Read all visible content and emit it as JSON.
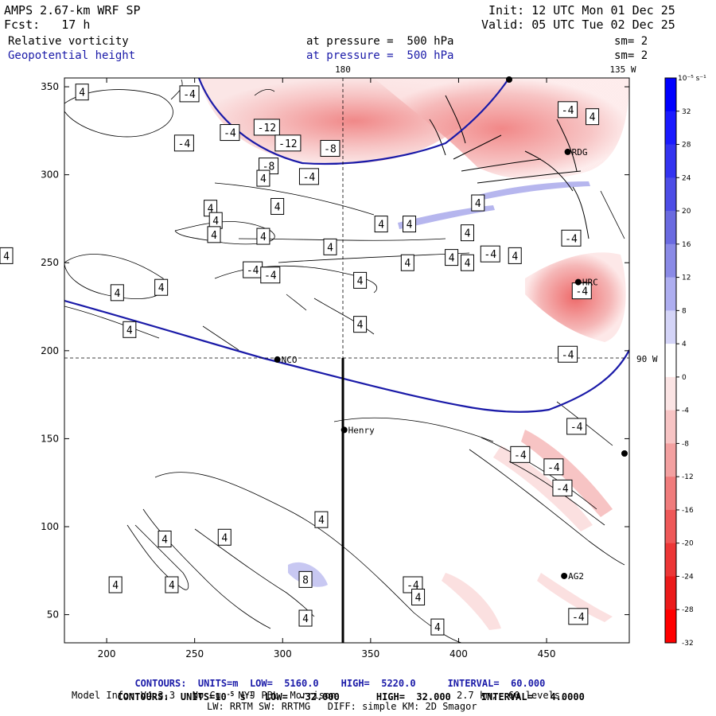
{
  "header": {
    "model": "AMPS 2.67-km WRF SP",
    "fcst": "Fcst:   17 h",
    "init": "Init: 12 UTC Mon 01 Dec 25",
    "valid": "Valid: 05 UTC Tue 02 Dec 25",
    "field1": "Relative vorticity",
    "field1_level": "at pressure =  500 hPa",
    "field1_sm": "sm= 2",
    "field2": "Geopotential height",
    "field2_level": "at pressure =  500 hPa",
    "field2_sm": "sm= 2"
  },
  "map": {
    "lon_top": [
      "180",
      "135 W"
    ],
    "lon_right": "90 W",
    "stations": [
      {
        "name": "NCO",
        "x": 297,
        "y": 195
      },
      {
        "name": "Henry",
        "x": 335,
        "y": 155
      },
      {
        "name": "HRC",
        "x": 468,
        "y": 239
      },
      {
        "name": "RDG",
        "x": 462,
        "y": 313
      },
      {
        "name": "AG2",
        "x": 460,
        "y": 72
      }
    ],
    "contour_labels_positive": [
      "4",
      "8"
    ],
    "contour_labels_negative": [
      "-4",
      "-8",
      "-12"
    ]
  },
  "chart_data": {
    "type": "heatmap",
    "title": "Relative vorticity and Geopotential height at 500 hPa",
    "x_ticks": [
      "200",
      "250",
      "300",
      "350",
      "400",
      "450"
    ],
    "y_ticks": [
      "50",
      "100",
      "150",
      "200",
      "250",
      "300",
      "350"
    ],
    "xlim": [
      176,
      497
    ],
    "ylim": [
      34,
      355
    ],
    "colorbar": {
      "units": "10⁻⁵ s⁻¹",
      "ticks": [
        "32",
        "28",
        "24",
        "20",
        "16",
        "12",
        "8",
        "4",
        "0",
        "-4",
        "-8",
        "-12",
        "-16",
        "-20",
        "-24",
        "-28",
        "-32"
      ],
      "colors": [
        "#0000ff",
        "#1a1aff",
        "#3333f0",
        "#4d4de6",
        "#6a6ae0",
        "#8a8ae6",
        "#aeaef0",
        "#d4d4f7",
        "#ffffff",
        "#fbe4e4",
        "#f7c4c4",
        "#f3a0a0",
        "#f07c7c",
        "#ee5858",
        "#ec3636",
        "#eb1a1a",
        "#ff0000"
      ]
    },
    "geopotential_height": {
      "units": "m",
      "low": 5160.0,
      "high": 5220.0,
      "interval": 60.0
    },
    "vorticity": {
      "units": "10⁻⁵ s⁻¹",
      "low": -32.0,
      "high": 32.0,
      "interval": 4.0
    }
  },
  "footer": {
    "contours1_prefix": "CONTOURS:  UNITS=m  LOW=  5160.0",
    "contours1_high": "HIGH=  5220.0",
    "contours1_interval": "INTERVAL=  60.000",
    "contours2_prefix": "CONTOURS:  UNITS=10",
    "contours2_exp": "-5",
    "contours2_s": " s",
    "contours2_sexp": "-1",
    "contours2_low": "  LOW=  -32.000",
    "contours2_high": "HIGH=  32.000",
    "contours2_interval": "INTERVAL=   4.0000",
    "model_info": "Model Info: V4.3.3   No Cu   MYJ PBL  Morrison",
    "resolution": "2.7 km,  60 levels,",
    "physics": "LW: RRTM SW: RRTMG   DIFF: simple KM: 2D Smagor"
  }
}
